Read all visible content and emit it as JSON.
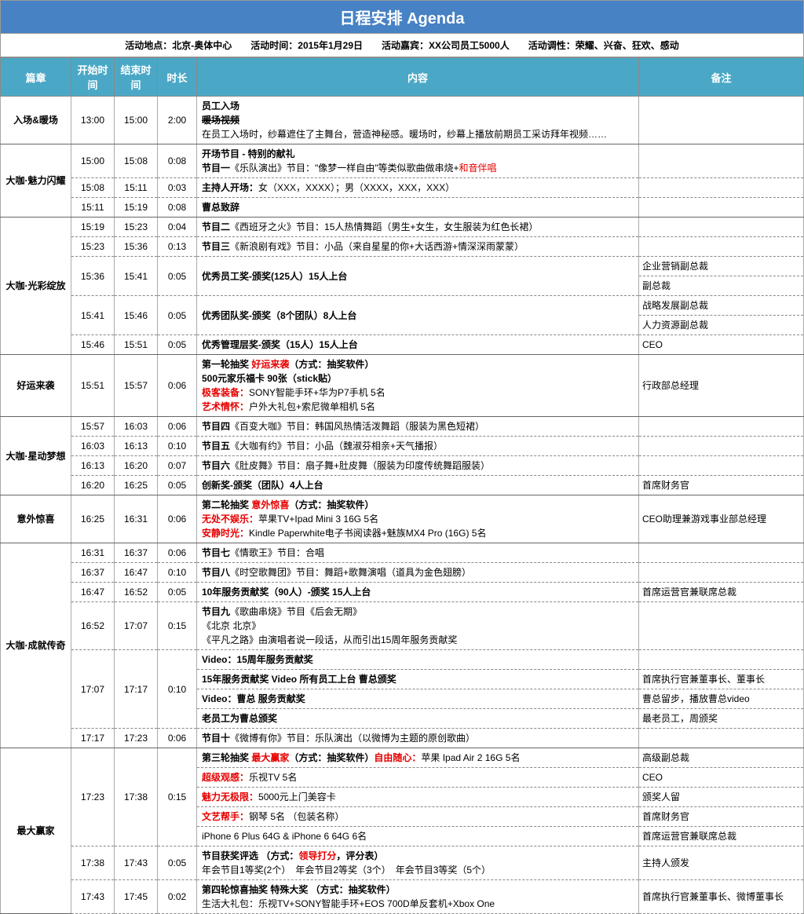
{
  "title": "日程安排  Agenda",
  "info_bar": "活动地点：北京-奥体中心　　活动时间：2015年1月29日　　活动嘉宾：XX公司员工5000人　　活动调性：荣耀、兴奋、狂欢、感动",
  "headers": {
    "chapter": "篇章",
    "start": "开始时间",
    "end": "结束时间",
    "dur": "时长",
    "content": "内容",
    "note": "备注"
  },
  "colors": {
    "title_bg": "#4682c4",
    "header_bg": "#4aa8c6",
    "header_fg": "#ffffff",
    "red": "#e60000"
  },
  "ch1": {
    "name": "入场&暖场",
    "r1": {
      "st": "13:00",
      "et": "15:00",
      "dur": "2:00",
      "l1": "员工入场",
      "l2": "暖场视频",
      "l3": "在员工入场时，纱幕遮住了主舞台，营造神秘感。暖场时，纱幕上播放前期员工采访拜年视频……"
    }
  },
  "ch2": {
    "name": "大咖·魅力闪耀",
    "r1": {
      "st": "15:00",
      "et": "15:08",
      "dur": "0:08",
      "l1": "开场节目 - 特别的献礼",
      "l2a": "节目一",
      "l2b": "《乐队演出》节目：\"像梦一样自由\"等类似歌曲做串烧+",
      "l2c": "和音伴唱"
    },
    "r2": {
      "st": "15:08",
      "et": "15:11",
      "dur": "0:03",
      "l1a": "主持人开场：",
      "l1b": "女（XXX，XXXX）；男（XXXX，XXX，XXX）"
    },
    "r3": {
      "st": "15:11",
      "et": "15:19",
      "dur": "0:08",
      "l1": "曹总致辞"
    }
  },
  "ch3": {
    "name": "大咖·光彩绽放",
    "r1": {
      "st": "15:19",
      "et": "15:23",
      "dur": "0:04",
      "l1a": "节目二",
      "l1b": "《西班牙之火》节目：15人热情舞蹈（男生+女生，女生服装为红色长裙）"
    },
    "r2": {
      "st": "15:23",
      "et": "15:36",
      "dur": "0:13",
      "l1a": "节目三",
      "l1b": "《新浪剧有戏》节目：小品（来自星星的你+大话西游+情深深雨蒙蒙）"
    },
    "r3": {
      "st": "15:36",
      "et": "15:41",
      "dur": "0:05",
      "l1": "优秀员工奖-颁奖(125人）15人上台",
      "n1": "企业营销副总裁",
      "n2": "副总裁"
    },
    "r4": {
      "st": "15:41",
      "et": "15:46",
      "dur": "0:05",
      "l1": "优秀团队奖-颁奖（8个团队）8人上台",
      "n1": "战略发展副总裁",
      "n2": "人力资源副总裁"
    },
    "r5": {
      "st": "15:46",
      "et": "15:51",
      "dur": "0:05",
      "l1": "优秀管理层奖-颁奖（15人）15人上台",
      "n1": "CEO"
    }
  },
  "ch4": {
    "name": "好运来袭",
    "r1": {
      "st": "15:51",
      "et": "15:57",
      "dur": "0:06",
      "l1a": "第一轮抽奖 ",
      "l1b": "好运来袭",
      "l1c": "（方式：抽奖软件）",
      "l2": "500元家乐福卡 90张（stick贴）",
      "l3a": "极客装备：",
      "l3b": "SONY智能手环+华为P7手机 5名",
      "l4a": "艺术情怀：",
      "l4b": "户外大礼包+索尼微单相机 5名",
      "n1": "行政部总经理"
    }
  },
  "ch5": {
    "name": "大咖·星动梦想",
    "r1": {
      "st": "15:57",
      "et": "16:03",
      "dur": "0:06",
      "l1a": "节目四",
      "l1b": "《百变大咖》节目：韩国风热情活泼舞蹈（服装为黑色短裙）"
    },
    "r2": {
      "st": "16:03",
      "et": "16:13",
      "dur": "0:10",
      "l1a": "节目五",
      "l1b": "《大咖有约》节目：小品（魏淑芬相亲+天气播报）"
    },
    "r3": {
      "st": "16:13",
      "et": "16:20",
      "dur": "0:07",
      "l1a": "节目六",
      "l1b": "《肚皮舞》节目：扇子舞+肚皮舞（服装为印度传统舞蹈服装）"
    },
    "r4": {
      "st": "16:20",
      "et": "16:25",
      "dur": "0:05",
      "l1": "创新奖-颁奖（团队）4人上台",
      "n1": "首席财务官"
    }
  },
  "ch6": {
    "name": "意外惊喜",
    "r1": {
      "st": "16:25",
      "et": "16:31",
      "dur": "0:06",
      "l1a": "第二轮抽奖 ",
      "l1b": "意外惊喜",
      "l1c": "（方式：抽奖软件）",
      "l2a": "无处不娱乐：",
      "l2b": "苹果TV+Ipad Mini 3 16G  5名",
      "l3a": "安静时光：",
      "l3b": "Kindle Paperwhite电子书阅读器+魅族MX4 Pro (16G)  5名",
      "n1": "CEO助理兼游戏事业部总经理"
    }
  },
  "ch7": {
    "name": "大咖·成就传奇",
    "r1": {
      "st": "16:31",
      "et": "16:37",
      "dur": "0:06",
      "l1a": "节目七",
      "l1b": "《情歌王》节目：合唱"
    },
    "r2": {
      "st": "16:37",
      "et": "16:47",
      "dur": "0:10",
      "l1a": "节目八",
      "l1b": "《时空歌舞团》节目：舞蹈+歌舞演唱（道具为金色翅膀）"
    },
    "r3": {
      "st": "16:47",
      "et": "16:52",
      "dur": "0:05",
      "l1": "10年服务贡献奖（90人）-颁奖 15人上台",
      "n1": "首席运营官兼联席总裁"
    },
    "r4": {
      "st": "16:52",
      "et": "17:07",
      "dur": "0:15",
      "l1a": "节目九",
      "l1b": "《歌曲串烧》节目《后会无期》",
      "l2": "《北京 北京》",
      "l3": "《平凡之路》由演唱者说一段话，从而引出15周年服务贡献奖"
    },
    "r5": {
      "st": "17:07",
      "et": "17:17",
      "dur": "0:10",
      "l1": "Video：15周年服务贡献奖",
      "l2": "15年服务贡献奖 Video 所有员工上台 曹总颁奖",
      "n2": "首席执行官兼董事长、董事长",
      "l3": "Video：曹总 服务贡献奖",
      "n3": "曹总留步，播放曹总video",
      "l4": "老员工为曹总颁奖",
      "n4": "最老员工，周颁奖"
    },
    "r6": {
      "st": "17:17",
      "et": "17:23",
      "dur": "0:06",
      "l1a": "节目十",
      "l1b": "《微博有你》节目：乐队演出（以微博为主题的原创歌曲）"
    }
  },
  "ch8": {
    "name": "最大赢家",
    "r1": {
      "st": "17:23",
      "et": "17:38",
      "dur": "0:15",
      "l1a": "第三轮抽奖 ",
      "l1b": "最大赢家",
      "l1c": "（方式：抽奖软件）",
      "l1d": "自由随心：",
      "l1e": "苹果 Ipad Air 2 16G  5名",
      "n1": "高级副总裁",
      "l2a": "超级观感：",
      "l2b": "乐视TV  5名",
      "n2": "CEO",
      "l3a": "魅力无极限：",
      "l3b": "5000元上门美容卡",
      "n3": "颁奖人留",
      "l4a": "文艺帮手：",
      "l4b": "钢琴 5名 （包装名称）",
      "n4": "首席财务官",
      "l5": "iPhone 6 Plus 64G & iPhone 6 64G  6名",
      "n5": "首席运营官兼联席总裁"
    },
    "r2": {
      "st": "17:38",
      "et": "17:43",
      "dur": "0:05",
      "l1a": "节目获奖评选 （方式：",
      "l1b": "领导打分",
      "l1c": "，评分表）",
      "l2": "年会节目1等奖(2个）　年会节目2等奖（3个）　年会节目3等奖（5个）",
      "n1": "主持人颁发"
    },
    "r3": {
      "st": "17:43",
      "et": "17:45",
      "dur": "0:02",
      "l1": "第四轮惊喜抽奖  特殊大奖 （方式：抽奖软件）",
      "l2": "生活大礼包：乐视TV+SONY智能手环+EOS 700D单反套机+Xbox One",
      "n1": "首席执行官兼董事长、微博董事长"
    }
  }
}
